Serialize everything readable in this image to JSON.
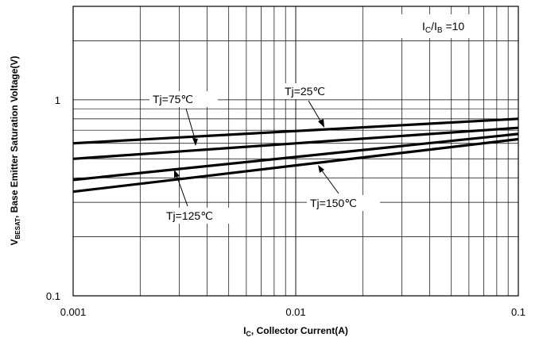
{
  "chart_data": {
    "type": "line",
    "title": "",
    "xlabel": {
      "main": "I",
      "sub": "C",
      "rest": ", Collector Current(A)"
    },
    "ylabel": {
      "main": "V",
      "sub": "BESAT",
      "rest": ", Base Emitter Saturation Voltage(V)"
    },
    "x_scale": "log",
    "y_scale": "log",
    "xlim": [
      0.001,
      0.1
    ],
    "ylim": [
      0.1,
      3
    ],
    "x_ticks": [
      {
        "value": 0.001,
        "label": "0.001"
      },
      {
        "value": 0.01,
        "label": "0.01"
      },
      {
        "value": 0.1,
        "label": "0.1"
      }
    ],
    "y_ticks": [
      {
        "value": 0.1,
        "label": "0.1"
      },
      {
        "value": 1,
        "label": "1"
      }
    ],
    "grid": true,
    "condition": {
      "a": "I",
      "a_sub": "C",
      "sep": "/I",
      "b_sub": "B",
      "rest": " =10"
    },
    "series": [
      {
        "name": "Tj=25℃",
        "x": [
          0.001,
          0.1
        ],
        "y": [
          0.34,
          0.63
        ]
      },
      {
        "name": "Tj=75℃",
        "x": [
          0.001,
          0.1
        ],
        "y": [
          0.39,
          0.67
        ]
      },
      {
        "name": "Tj=125℃",
        "x": [
          0.001,
          0.1
        ],
        "y": [
          0.5,
          0.72
        ]
      },
      {
        "name": "Tj=150℃",
        "x": [
          0.001,
          0.1
        ],
        "y": [
          0.6,
          0.8
        ]
      }
    ],
    "annotations": [
      {
        "text": "Tj=75℃"
      },
      {
        "text": "Tj=25℃"
      },
      {
        "text": "Tj=125℃"
      },
      {
        "text": "Tj=150℃"
      }
    ]
  }
}
